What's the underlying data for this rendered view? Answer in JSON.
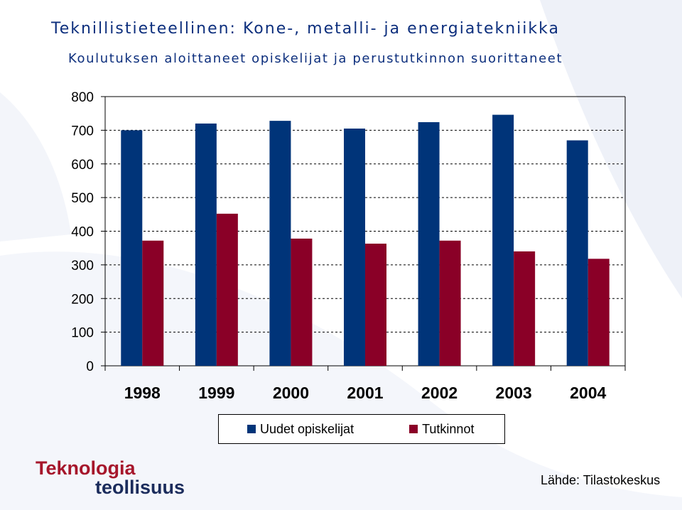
{
  "title": "Teknillistieteellinen: Kone-, metalli- ja energiatekniikka",
  "subtitle": "Koulutuksen aloittaneet opiskelijat ja perustutkinnon suorittaneet",
  "colors": {
    "series1": "#003479",
    "series2": "#8a0027",
    "title": "#0d2f7d"
  },
  "chart_data": {
    "type": "bar",
    "categories": [
      "1998",
      "1999",
      "2000",
      "2001",
      "2002",
      "2003",
      "2004"
    ],
    "series": [
      {
        "name": "Uudet opiskelijat",
        "values": [
          700,
          720,
          728,
          705,
          724,
          746,
          670
        ]
      },
      {
        "name": "Tutkinnot",
        "values": [
          372,
          452,
          378,
          363,
          372,
          340,
          318
        ]
      }
    ],
    "ylim": [
      0,
      800
    ],
    "yticks": [
      0,
      100,
      200,
      300,
      400,
      500,
      600,
      700,
      800
    ],
    "xlabel": "",
    "ylabel": "",
    "grid": true,
    "legend": "bottom"
  },
  "logo": {
    "line1": "Teknologia",
    "line2": "teollisuus"
  },
  "source": "Lähde: Tilastokeskus"
}
